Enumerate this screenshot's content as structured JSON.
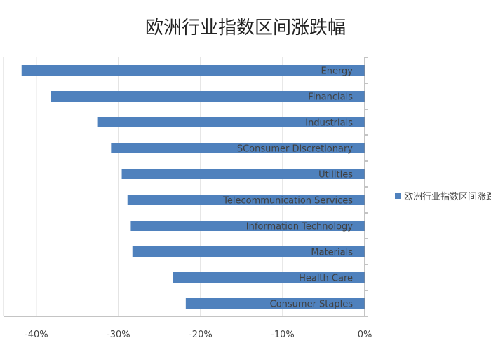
{
  "chart_data": {
    "type": "bar",
    "orientation": "horizontal",
    "title": "欧洲行业指数区间涨跌幅",
    "categories": [
      "Energy",
      "Financials",
      "Industrials",
      "SConsumer Discretionary",
      "Utilities",
      "Telecommunication Services",
      "Information Technology",
      "Materials",
      "Health Care",
      "Consumer Staples"
    ],
    "series": [
      {
        "name": "欧洲行业指数区间涨跌幅",
        "values": [
          -41.8,
          -38.2,
          -32.5,
          -30.9,
          -29.6,
          -28.9,
          -28.5,
          -28.3,
          -23.4,
          -21.8
        ]
      }
    ],
    "x_ticks": [
      "-40%",
      "-30%",
      "-20%",
      "-10%",
      "0%"
    ],
    "xlim": [
      -44,
      0
    ],
    "grid": true,
    "legend_position": "right",
    "bar_color": "#4F81BD"
  }
}
